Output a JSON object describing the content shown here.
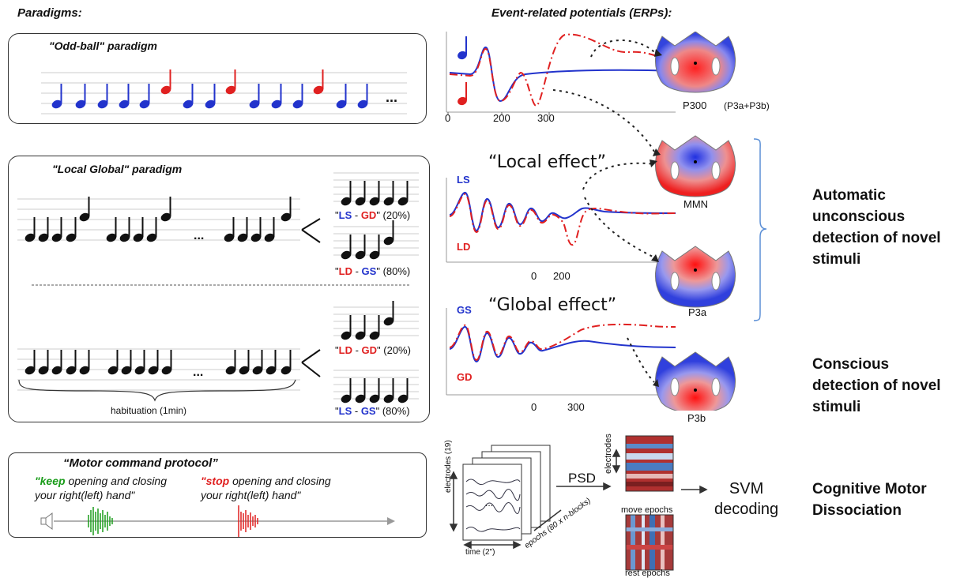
{
  "headers": {
    "paradigms": "Paradigms:",
    "erps": "Event-related potentials (ERPs):"
  },
  "oddball": {
    "title": "\"Odd-ball\" paradigm",
    "ellipsis": "..."
  },
  "local_global": {
    "title": "\"Local Global\" paradigm",
    "ellipsis": "...",
    "habituation": "habituation (1min)",
    "conditions": [
      {
        "a": "LS",
        "sep": " - ",
        "b": "GD",
        "pct": "(20%)"
      },
      {
        "a": "LD",
        "sep": " - ",
        "b": "GS",
        "pct": "(80%)"
      },
      {
        "a": "LD",
        "sep": " - ",
        "b": "GD",
        "pct": "(20%)"
      },
      {
        "a": "LS",
        "sep": " - ",
        "b": "GS",
        "pct": "(80%)"
      }
    ]
  },
  "erp": {
    "p300_axis": {
      "t0": "0",
      "t200": "200",
      "t300": "300"
    },
    "local": {
      "title": "“Local effect”",
      "top": "LS",
      "bottom": "LD",
      "t0": "0",
      "t200": "200"
    },
    "global": {
      "title": "“Global effect”",
      "top": "GS",
      "bottom": "GD",
      "t0": "0",
      "t300": "300"
    }
  },
  "topomaps": {
    "p300": "P300",
    "p300_note": "(P3a+P3b)",
    "mmn": "MMN",
    "p3a": "P3a",
    "p3b": "P3b"
  },
  "side_labels": {
    "automatic": [
      "Automatic",
      "unconscious",
      "detection of novel",
      "stimuli"
    ],
    "conscious": [
      "Conscious",
      "detection of novel",
      "stimuli"
    ],
    "cmd": [
      "Cognitive Motor",
      "Dissociation"
    ]
  },
  "motor": {
    "title": "“Motor command protocol”",
    "keep_word": "\"keep",
    "keep_rest": " opening and closing",
    "keep_line2": "your right(left) hand\"",
    "stop_word": "\"stop",
    "stop_rest": " opening and closing",
    "stop_line2": "your right(left) hand\""
  },
  "pipeline": {
    "electrodes_axis": "electrodes (19)",
    "time_axis": "time (2\")",
    "epochs_axis": "epochs (80 x n-blocks)",
    "dots": "...",
    "psd": "PSD",
    "electrodes": "electrodes",
    "move": "move epochs",
    "rest": "rest epochs",
    "svm": [
      "SVM",
      "decoding"
    ]
  },
  "colors": {
    "blue": "#2233cc",
    "red": "#e02020",
    "bracket": "#5b8fd6",
    "green": "#1a9c1a"
  }
}
